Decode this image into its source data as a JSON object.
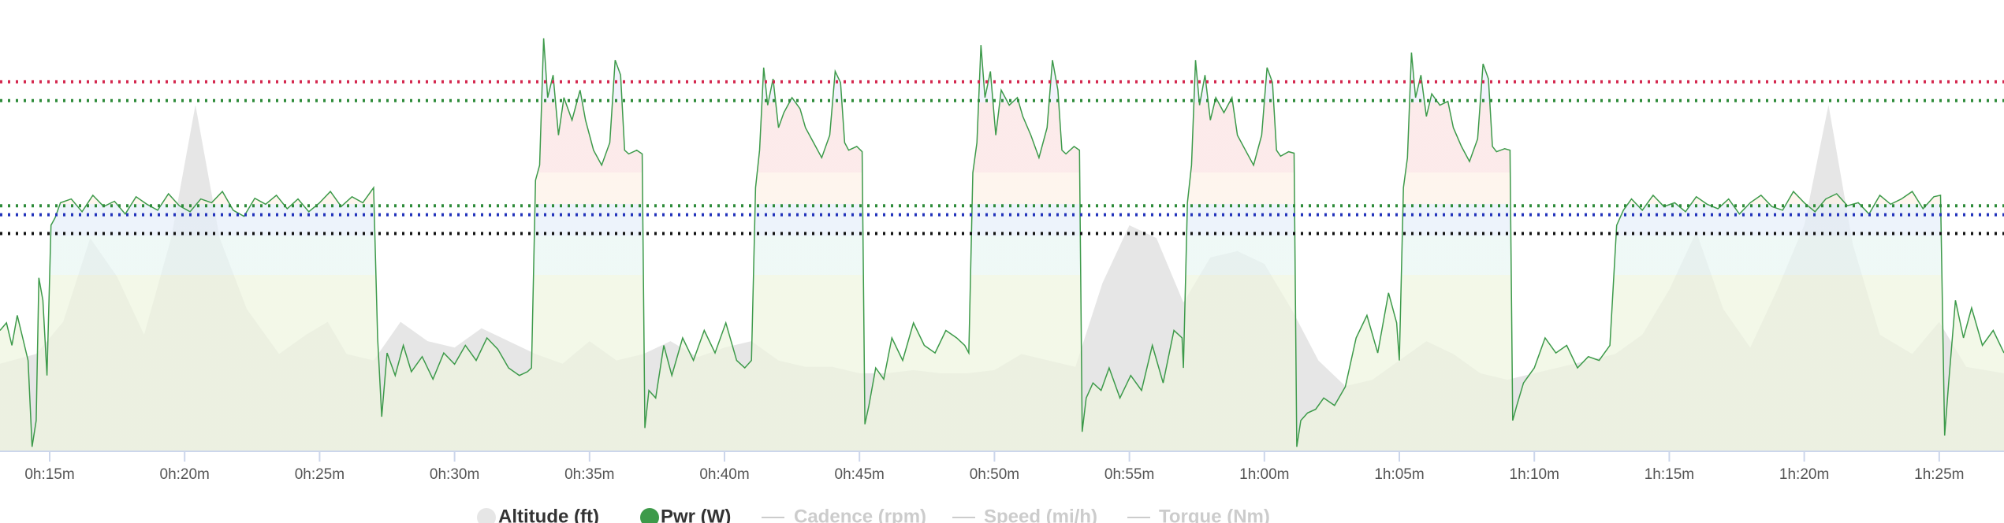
{
  "chart_data": {
    "type": "line",
    "xlim": [
      13.16,
      87.4
    ],
    "xticks": [
      {
        "value": 15,
        "label": "0h:15m"
      },
      {
        "value": 20,
        "label": "0h:20m"
      },
      {
        "value": 25,
        "label": "0h:25m"
      },
      {
        "value": 30,
        "label": "0h:30m"
      },
      {
        "value": 35,
        "label": "0h:35m"
      },
      {
        "value": 40,
        "label": "0h:40m"
      },
      {
        "value": 45,
        "label": "0h:45m"
      },
      {
        "value": 50,
        "label": "0h:50m"
      },
      {
        "value": 55,
        "label": "0h:55m"
      },
      {
        "value": 60,
        "label": "1h:00m"
      },
      {
        "value": 65,
        "label": "1h:05m"
      },
      {
        "value": 70,
        "label": "1h:10m"
      },
      {
        "value": 75,
        "label": "1h:15m"
      },
      {
        "value": 80,
        "label": "1h:20m"
      },
      {
        "value": 85,
        "label": "1h:25m"
      }
    ],
    "ylim": [
      0,
      600
    ],
    "y2lim": [
      0,
      700
    ],
    "reference_lines": [
      {
        "value": 491,
        "color": "#d4284f"
      },
      {
        "value": 466,
        "color": "#2e8b3a"
      },
      {
        "value": 326,
        "color": "#2e8b3a"
      },
      {
        "value": 314,
        "color": "#2233bb"
      },
      {
        "value": 289,
        "color": "#111111"
      }
    ],
    "series": [
      {
        "name": "Altitude (ft)",
        "color": "#e6e6e6",
        "axis": "y2",
        "x": [
          13.16,
          14.5,
          15.5,
          16.5,
          17.5,
          18.5,
          19.5,
          20.4,
          21.3,
          22.3,
          23.5,
          24.5,
          25.3,
          26,
          27,
          28,
          29,
          30,
          31,
          32,
          33,
          34,
          35,
          36,
          37,
          38,
          39,
          40,
          41,
          42,
          43,
          44,
          45,
          46,
          47,
          48,
          49,
          50,
          51,
          52,
          53,
          54,
          55,
          56,
          57,
          58,
          59,
          60,
          61,
          62,
          63,
          64,
          65,
          66,
          67,
          68,
          69,
          70,
          71,
          72,
          73,
          74,
          75,
          76,
          77,
          78,
          79,
          80,
          80.9,
          81.8,
          82.8,
          84,
          85,
          86,
          87.4
        ],
        "values": [
          135,
          150,
          200,
          330,
          270,
          180,
          330,
          537,
          330,
          220,
          150,
          180,
          200,
          150,
          140,
          200,
          170,
          160,
          190,
          170,
          150,
          135,
          170,
          140,
          150,
          170,
          145,
          160,
          170,
          140,
          130,
          130,
          120,
          120,
          125,
          120,
          120,
          125,
          150,
          140,
          130,
          260,
          350,
          330,
          230,
          300,
          310,
          290,
          220,
          140,
          100,
          110,
          140,
          170,
          150,
          120,
          110,
          120,
          130,
          140,
          150,
          180,
          250,
          340,
          220,
          160,
          250,
          350,
          537,
          320,
          180,
          150,
          200,
          130,
          120
        ]
      },
      {
        "name": "Pwr (W)",
        "color": "#3d9a4a",
        "x": [
          13.16,
          13.4,
          13.6,
          13.8,
          14.0,
          14.2,
          14.35,
          14.5,
          14.6,
          14.75,
          14.9,
          15.05,
          15.2,
          15.4,
          15.8,
          16.2,
          16.6,
          17.0,
          17.4,
          17.8,
          18.2,
          18.6,
          19.0,
          19.4,
          19.8,
          20.2,
          20.6,
          21.0,
          21.4,
          21.8,
          22.2,
          22.6,
          23.0,
          23.4,
          23.8,
          24.2,
          24.6,
          25.0,
          25.4,
          25.8,
          26.2,
          26.6,
          27.0,
          27.15,
          27.3,
          27.5,
          27.8,
          28.1,
          28.4,
          28.8,
          29.2,
          29.6,
          30.0,
          30.4,
          30.8,
          31.2,
          31.6,
          32.0,
          32.4,
          32.7,
          32.85,
          33.0,
          33.15,
          33.3,
          33.45,
          33.65,
          33.85,
          34.05,
          34.35,
          34.65,
          34.85,
          35.15,
          35.45,
          35.75,
          35.95,
          36.15,
          36.3,
          36.45,
          36.75,
          36.95,
          37.05,
          37.2,
          37.45,
          37.75,
          38.05,
          38.45,
          38.85,
          39.25,
          39.65,
          40.05,
          40.45,
          40.75,
          41.0,
          41.15,
          41.3,
          41.45,
          41.6,
          41.8,
          42.0,
          42.2,
          42.5,
          42.8,
          43.0,
          43.3,
          43.6,
          43.9,
          44.1,
          44.3,
          44.45,
          44.6,
          44.9,
          45.1,
          45.2,
          45.35,
          45.6,
          45.9,
          46.2,
          46.6,
          47.0,
          47.4,
          47.8,
          48.2,
          48.6,
          48.9,
          49.05,
          49.2,
          49.35,
          49.5,
          49.65,
          49.85,
          50.05,
          50.25,
          50.55,
          50.85,
          51.05,
          51.35,
          51.65,
          51.95,
          52.15,
          52.35,
          52.5,
          52.65,
          52.95,
          53.15,
          53.25,
          53.4,
          53.65,
          53.95,
          54.25,
          54.65,
          55.05,
          55.45,
          55.85,
          56.25,
          56.65,
          56.95,
          57.0,
          57.15,
          57.3,
          57.45,
          57.6,
          57.8,
          58.0,
          58.2,
          58.5,
          58.8,
          59.0,
          59.3,
          59.6,
          59.9,
          60.1,
          60.3,
          60.45,
          60.6,
          60.9,
          61.1,
          61.2,
          61.35,
          61.6,
          61.9,
          62.2,
          62.6,
          63.0,
          63.4,
          63.8,
          64.2,
          64.6,
          64.9,
          65.0,
          65.15,
          65.3,
          65.45,
          65.6,
          65.8,
          66.0,
          66.2,
          66.5,
          66.8,
          67.0,
          67.3,
          67.6,
          67.9,
          68.1,
          68.3,
          68.45,
          68.6,
          68.9,
          69.1,
          69.2,
          69.35,
          69.6,
          70.0,
          70.4,
          70.8,
          71.2,
          71.6,
          72.0,
          72.4,
          72.8,
          73.05,
          73.3,
          73.6,
          74.0,
          74.4,
          74.8,
          75.2,
          75.6,
          76.0,
          76.4,
          76.8,
          77.2,
          77.6,
          78.0,
          78.4,
          78.8,
          79.2,
          79.6,
          80.0,
          80.4,
          80.8,
          81.2,
          81.6,
          82.0,
          82.4,
          82.8,
          83.2,
          83.6,
          84.0,
          84.4,
          84.8,
          85.05,
          85.2,
          85.35,
          85.6,
          85.9,
          86.2,
          86.6,
          87.0,
          87.4
        ],
        "values": [
          160,
          170,
          140,
          180,
          150,
          120,
          5,
          40,
          230,
          200,
          100,
          300,
          310,
          330,
          335,
          318,
          340,
          325,
          332,
          315,
          338,
          328,
          320,
          342,
          326,
          318,
          335,
          330,
          345,
          320,
          312,
          336,
          328,
          340,
          322,
          335,
          318,
          330,
          345,
          325,
          338,
          330,
          350,
          150,
          45,
          130,
          100,
          140,
          105,
          125,
          95,
          130,
          115,
          140,
          120,
          150,
          135,
          110,
          100,
          105,
          110,
          360,
          380,
          549,
          470,
          500,
          420,
          470,
          440,
          480,
          440,
          400,
          380,
          410,
          520,
          500,
          400,
          395,
          400,
          395,
          30,
          80,
          70,
          140,
          100,
          150,
          120,
          160,
          130,
          170,
          120,
          110,
          120,
          350,
          400,
          510,
          460,
          495,
          430,
          450,
          470,
          455,
          430,
          410,
          390,
          420,
          505,
          490,
          410,
          400,
          405,
          398,
          35,
          60,
          110,
          95,
          150,
          120,
          170,
          140,
          130,
          160,
          150,
          140,
          130,
          370,
          410,
          540,
          470,
          505,
          420,
          480,
          460,
          470,
          445,
          420,
          390,
          430,
          520,
          480,
          400,
          395,
          405,
          400,
          25,
          70,
          90,
          80,
          110,
          70,
          100,
          80,
          140,
          90,
          160,
          150,
          110,
          330,
          380,
          520,
          460,
          500,
          440,
          470,
          450,
          470,
          420,
          400,
          380,
          420,
          510,
          490,
          400,
          392,
          398,
          396,
          5,
          40,
          50,
          55,
          70,
          60,
          85,
          150,
          180,
          130,
          210,
          170,
          120,
          350,
          390,
          530,
          470,
          500,
          445,
          475,
          460,
          465,
          430,
          405,
          385,
          415,
          515,
          495,
          405,
          398,
          402,
          400,
          40,
          60,
          90,
          110,
          150,
          130,
          140,
          110,
          125,
          120,
          140,
          300,
          320,
          335,
          320,
          340,
          325,
          330,
          318,
          338,
          328,
          322,
          335,
          315,
          330,
          340,
          325,
          320,
          345,
          330,
          318,
          335,
          342,
          326,
          330,
          315,
          340,
          328,
          335,
          345,
          322,
          338,
          340,
          20,
          90,
          200,
          150,
          190,
          140,
          160,
          130
        ]
      }
    ],
    "hidden_series": [
      {
        "name": "Cadence (rpm)"
      },
      {
        "name": "Speed (mi/h)"
      },
      {
        "name": "Torque (Nm)"
      }
    ]
  }
}
